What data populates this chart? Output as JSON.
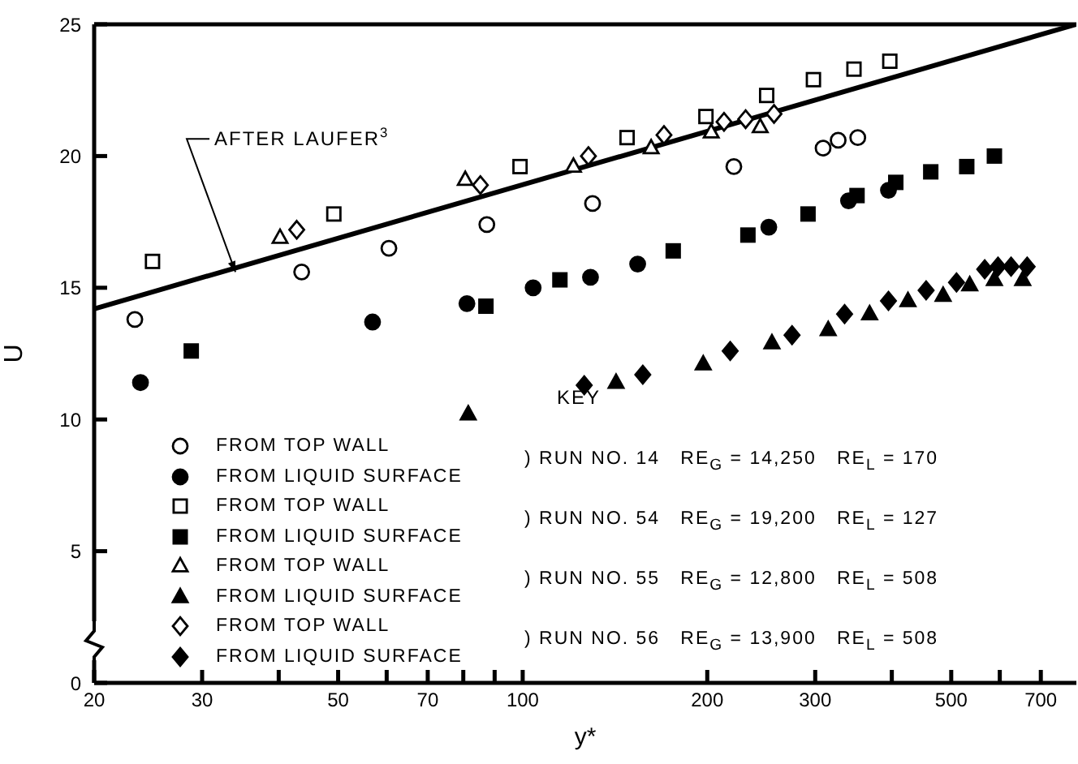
{
  "chart_data": {
    "type": "scatter",
    "xlabel": "y*",
    "ylabel": "U",
    "log": "x",
    "xlim": [
      20,
      800
    ],
    "ylim": [
      0,
      25
    ],
    "xticks": [
      20,
      30,
      {
        "value": 40,
        "label": null
      },
      50,
      {
        "value": 60,
        "label": null
      },
      70,
      {
        "value": 80,
        "label": null
      },
      {
        "value": 90,
        "label": null
      },
      100,
      200,
      300,
      {
        "value": 400,
        "label": null
      },
      500,
      {
        "value": 600,
        "label": null
      },
      700
    ],
    "yticks": [
      0,
      5,
      10,
      15,
      20,
      25
    ],
    "grid": false,
    "legend": "bottom left",
    "annotations": [
      "KEY",
      {
        "text": "AFTER LAUFER$^{3}$",
        "x": 34,
        "y": 15.6
      },
      ") RUN NO. 14   RE$_{G}$ = 14,250   RE$_{L}$ = 170",
      ") RUN NO. 54   RE$_{G}$ = 19,200   RE$_{L}$ = 127",
      ") RUN NO. 55   RE$_{G}$ = 12,800   RE$_{L}$ = 508",
      ") RUN NO. 56   RE$_{G}$ = 13,900   RE$_{L}$ = 508"
    ],
    "series": [
      {
        "name": "FROM TOP WALL",
        "color": "#000000",
        "marker": "circle",
        "x": [
          23.3,
          43.6,
          60.5,
          87.4,
          130,
          221,
          309,
          327,
          352
        ],
        "values": [
          13.8,
          15.6,
          16.5,
          17.4,
          18.2,
          19.6,
          20.3,
          20.6,
          20.7
        ]
      },
      {
        "name": "FROM LIQUID SURFACE",
        "color": "#000000",
        "marker": "circle",
        "x": [
          23.8,
          56.9,
          81.1,
          104,
          129,
          154,
          252,
          340,
          395
        ],
        "values": [
          11.4,
          13.7,
          14.4,
          15.0,
          15.4,
          15.9,
          17.3,
          18.3,
          18.7
        ]
      },
      {
        "name": "FROM TOP WALL",
        "color": "#000000",
        "marker": "square",
        "x": [
          24.9,
          49.2,
          99,
          148,
          199,
          250,
          298,
          347,
          397
        ],
        "values": [
          16.0,
          17.8,
          19.6,
          20.7,
          21.5,
          22.3,
          22.9,
          23.3,
          23.6
        ]
      },
      {
        "name": "FROM LIQUID SURFACE",
        "color": "#000000",
        "marker": "square",
        "x": [
          28.8,
          87.1,
          115,
          176,
          233,
          292,
          351,
          406,
          463,
          530,
          588
        ],
        "values": [
          12.6,
          14.3,
          15.3,
          16.4,
          17.0,
          17.8,
          18.5,
          19.0,
          19.4,
          19.6,
          20.0
        ]
      },
      {
        "name": "FROM TOP WALL",
        "color": "#000000",
        "marker": "triangle",
        "x": [
          40.2,
          80.6,
          121,
          162,
          203,
          244
        ],
        "values": [
          16.9,
          19.1,
          19.6,
          20.3,
          20.9,
          21.1
        ]
      },
      {
        "name": "FROM LIQUID SURFACE",
        "color": "#000000",
        "marker": "triangle",
        "x": [
          81.5,
          142,
          197,
          255,
          315,
          368,
          425,
          485,
          536,
          588,
          654
        ],
        "values": [
          10.2,
          11.4,
          12.1,
          12.9,
          13.4,
          14.0,
          14.5,
          14.7,
          15.1,
          15.3,
          15.3
        ]
      },
      {
        "name": "FROM TOP WALL",
        "color": "#000000",
        "marker": "diamond",
        "x": [
          42.8,
          85.3,
          128,
          170,
          213,
          231,
          257
        ],
        "values": [
          17.2,
          18.9,
          20.0,
          20.8,
          21.3,
          21.4,
          21.6
        ]
      },
      {
        "name": "FROM LIQUID SURFACE",
        "color": "#000000",
        "marker": "diamond",
        "x": [
          126,
          157,
          218,
          275,
          335,
          395,
          455,
          510,
          567,
          596,
          626,
          665
        ],
        "values": [
          11.3,
          11.7,
          12.6,
          13.2,
          14.0,
          14.5,
          14.9,
          15.2,
          15.7,
          15.8,
          15.8,
          15.8
        ]
      },
      {
        "type": "line",
        "color": "#000000",
        "marker": "none",
        "line_style": "solid",
        "x": [
          20,
          800
        ],
        "values": [
          14.2,
          25
        ]
      }
    ]
  }
}
